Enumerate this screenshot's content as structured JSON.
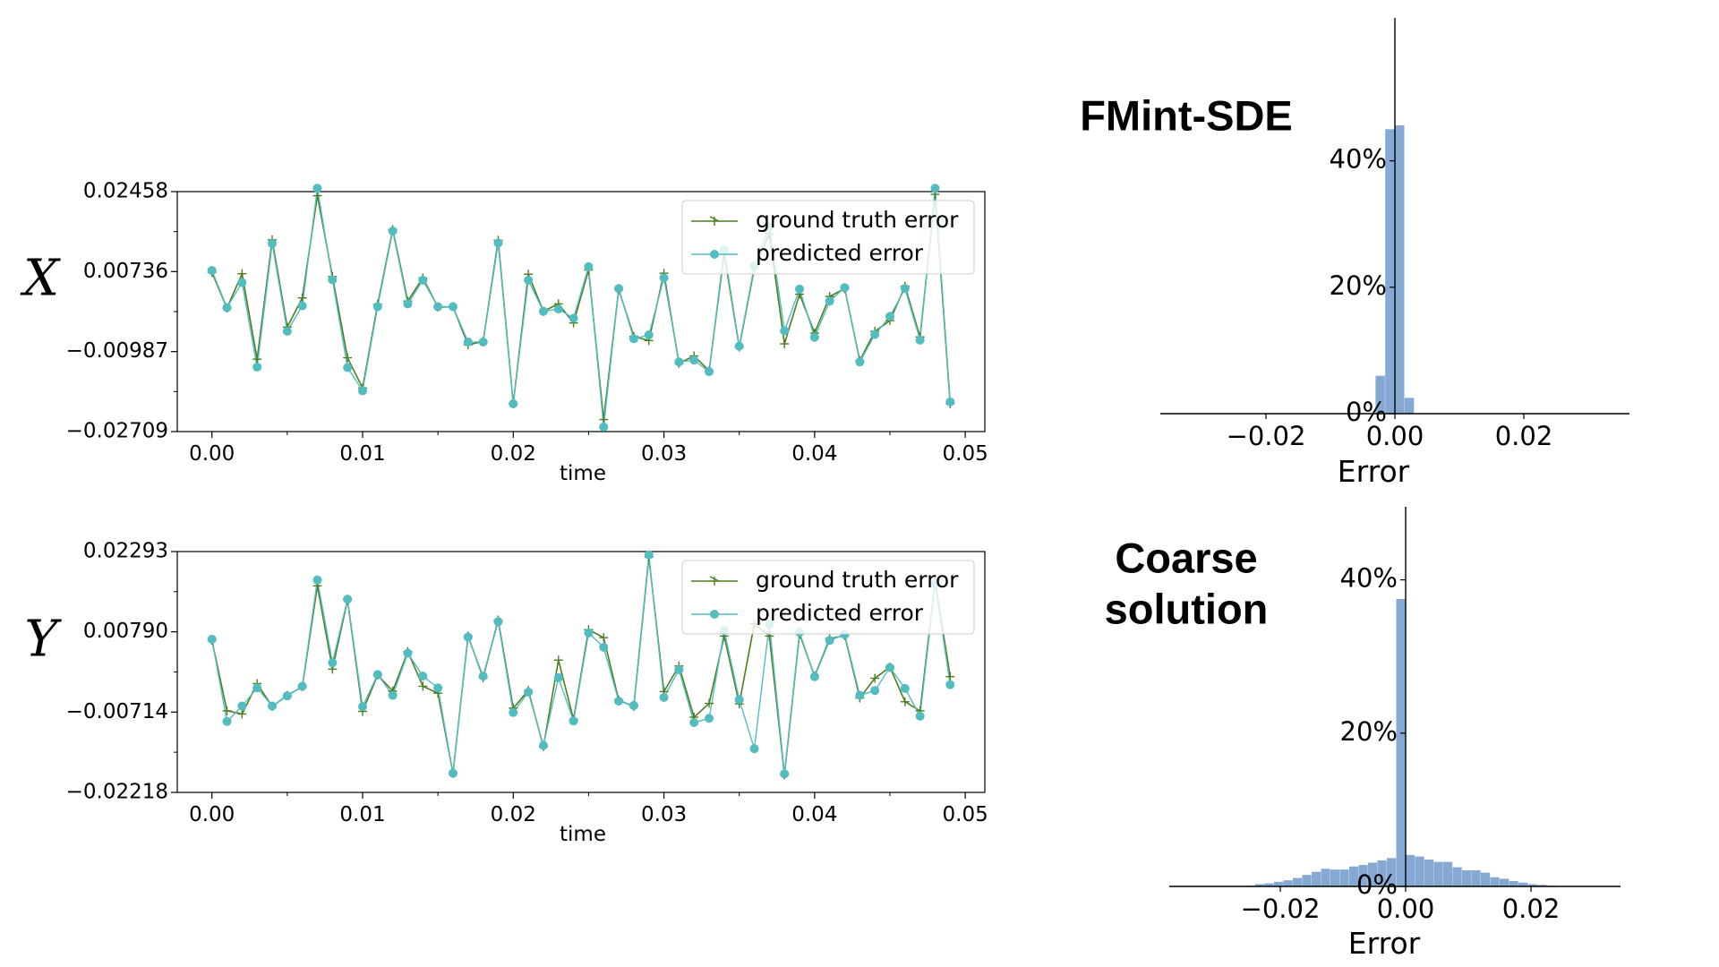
{
  "chart_data": [
    {
      "type": "line",
      "panel_label": "X",
      "xlabel": "time",
      "x": [
        0.0,
        0.001,
        0.002,
        0.003,
        0.004,
        0.005,
        0.006,
        0.007,
        0.008,
        0.009,
        0.01,
        0.011,
        0.012,
        0.013,
        0.014,
        0.015,
        0.016,
        0.017,
        0.018,
        0.019,
        0.02,
        0.021,
        0.022,
        0.023,
        0.024,
        0.025,
        0.026,
        0.027,
        0.028,
        0.029,
        0.03,
        0.031,
        0.032,
        0.033,
        0.034,
        0.035,
        0.036,
        0.037,
        0.038,
        0.039,
        0.04,
        0.041,
        0.042,
        0.043,
        0.044,
        0.045,
        0.046,
        0.047,
        0.048,
        0.049
      ],
      "xticks": [
        "0.00",
        "0.01",
        "0.02",
        "0.03",
        "0.04",
        "0.05"
      ],
      "xlim": [
        -0.0023,
        0.0513
      ],
      "yticks": [
        "0.02458",
        "0.00736",
        "−0.00987",
        "−0.02709"
      ],
      "ytick_values": [
        0.02458,
        0.00736,
        -0.00987,
        -0.02709
      ],
      "ylim": [
        -0.02709,
        0.02458
      ],
      "series": [
        {
          "name": "ground truth error",
          "color": "#4e7d1f",
          "marker": "plus",
          "values": [
            0.0072,
            -0.0005,
            0.0069,
            -0.0115,
            0.0142,
            -0.0046,
            0.0017,
            0.0237,
            0.0063,
            -0.0112,
            -0.0177,
            0.0003,
            0.0164,
            0.001,
            0.006,
            -0.0003,
            -0.0002,
            -0.0084,
            -0.0077,
            0.0141,
            -0.0211,
            0.0068,
            -0.0012,
            0.0004,
            -0.0037,
            0.0077,
            -0.0245,
            0.0035,
            -0.0066,
            -0.0075,
            0.007,
            -0.0124,
            -0.0108,
            -0.014,
            0.0112,
            -0.0089,
            0.0081,
            0.0155,
            -0.0082,
            0.0025,
            -0.0059,
            0.002,
            0.0037,
            -0.0118,
            -0.0055,
            -0.0032,
            0.0042,
            -0.0067,
            0.024,
            -0.0211
          ]
        },
        {
          "name": "predicted error",
          "color": "#52bcc0",
          "marker": "circle",
          "values": [
            0.0076,
            -0.0004,
            0.005,
            -0.0132,
            0.0134,
            -0.0055,
            0.0,
            0.0253,
            0.0056,
            -0.0133,
            -0.0183,
            -0.0002,
            0.0161,
            0.0004,
            0.0055,
            -0.0002,
            -0.0002,
            -0.0078,
            -0.0078,
            0.0135,
            -0.0211,
            0.0055,
            -0.0012,
            -0.0007,
            -0.0027,
            0.0084,
            -0.0261,
            0.0037,
            -0.0071,
            -0.0063,
            0.006,
            -0.0121,
            -0.0117,
            -0.0142,
            0.012,
            -0.0087,
            0.0086,
            0.017,
            -0.0054,
            0.0036,
            -0.0068,
            0.001,
            0.0039,
            -0.0121,
            -0.0062,
            -0.0023,
            0.0037,
            -0.0074,
            0.0253,
            -0.0207
          ]
        }
      ],
      "legend_position": "upper right"
    },
    {
      "type": "line",
      "panel_label": "Y",
      "xlabel": "time",
      "x": [
        0.0,
        0.001,
        0.002,
        0.003,
        0.004,
        0.005,
        0.006,
        0.007,
        0.008,
        0.009,
        0.01,
        0.011,
        0.012,
        0.013,
        0.014,
        0.015,
        0.016,
        0.017,
        0.018,
        0.019,
        0.02,
        0.021,
        0.022,
        0.023,
        0.024,
        0.025,
        0.026,
        0.027,
        0.028,
        0.029,
        0.03,
        0.031,
        0.032,
        0.033,
        0.034,
        0.035,
        0.036,
        0.037,
        0.038,
        0.039,
        0.04,
        0.041,
        0.042,
        0.043,
        0.044,
        0.045,
        0.046,
        0.047,
        0.048,
        0.049
      ],
      "xticks": [
        "0.00",
        "0.01",
        "0.02",
        "0.03",
        "0.04",
        "0.05"
      ],
      "xlim": [
        -0.0023,
        0.0513
      ],
      "yticks": [
        "0.02293",
        "0.00790",
        "−0.00714",
        "−0.02218"
      ],
      "ytick_values": [
        0.02293,
        0.0079,
        -0.00714,
        -0.02218
      ],
      "ylim": [
        -0.02218,
        0.02293
      ],
      "series": [
        {
          "name": "ground truth error",
          "color": "#4e7d1f",
          "marker": "plus",
          "values": [
            0.0063,
            -0.0069,
            -0.0075,
            -0.0018,
            -0.0061,
            -0.004,
            -0.0024,
            0.0165,
            0.0009,
            0.0139,
            -0.007,
            -0.0002,
            -0.0032,
            0.0042,
            -0.0023,
            -0.0036,
            -0.0186,
            0.0071,
            -0.0007,
            0.0101,
            -0.0064,
            -0.0031,
            -0.0136,
            0.0026,
            -0.0085,
            0.0083,
            0.0068,
            -0.0049,
            -0.0061,
            0.0219,
            -0.0033,
            0.0015,
            -0.0081,
            -0.0055,
            0.0071,
            -0.0056,
            0.0094,
            0.0071,
            -0.0189,
            0.0075,
            -0.0004,
            0.0066,
            0.0072,
            -0.0045,
            -0.0008,
            0.0013,
            -0.0052,
            -0.0069,
            0.0173,
            -0.0005
          ]
        },
        {
          "name": "predicted error",
          "color": "#52bcc0",
          "marker": "circle",
          "values": [
            0.0065,
            -0.0089,
            -0.006,
            -0.0026,
            -0.006,
            -0.0041,
            -0.0023,
            0.0176,
            0.0021,
            0.014,
            -0.0061,
            -0.0001,
            -0.004,
            0.0039,
            -0.0004,
            -0.0026,
            -0.0186,
            0.0069,
            -0.0004,
            0.0098,
            -0.0072,
            -0.0034,
            -0.0134,
            -0.0007,
            -0.0088,
            0.0077,
            0.005,
            -0.0051,
            -0.0059,
            0.0223,
            -0.0044,
            0.0008,
            -0.0091,
            -0.0083,
            0.0081,
            -0.0048,
            -0.014,
            0.0094,
            -0.0187,
            0.0078,
            -0.0005,
            0.0063,
            0.0074,
            -0.004,
            -0.0031,
            0.0012,
            -0.0027,
            -0.0079,
            0.017,
            -0.002
          ]
        }
      ],
      "legend_position": "upper right"
    },
    {
      "type": "bar",
      "subtype": "histogram",
      "title": "FMint-SDE",
      "xlabel": "Error",
      "xticks": [
        "−0.02",
        "0.00",
        "0.02"
      ],
      "xtick_values": [
        -0.02,
        0.0,
        0.02
      ],
      "xlim": [
        -0.0292,
        0.0292
      ],
      "yticks": [
        "0%",
        "20%",
        "40%"
      ],
      "ytick_values": [
        0,
        20,
        40
      ],
      "ylim": [
        0,
        50.5
      ],
      "bar_color": "#85a9d3",
      "bins": [
        {
          "x0": -0.003,
          "x1": -0.0015,
          "value": 6.0
        },
        {
          "x0": -0.0015,
          "x1": 0.0,
          "value": 45.0
        },
        {
          "x0": 0.0,
          "x1": 0.0015,
          "value": 45.6
        },
        {
          "x0": 0.0015,
          "x1": 0.003,
          "value": 2.5
        }
      ]
    },
    {
      "type": "bar",
      "subtype": "histogram",
      "title": "Coarse\nsolution",
      "xlabel": "Error",
      "xticks": [
        "−0.02",
        "0.00",
        "0.02"
      ],
      "xtick_values": [
        -0.02,
        0.0,
        0.02
      ],
      "xlim": [
        -0.0292,
        0.0292
      ],
      "yticks": [
        "0%",
        "20%",
        "40%"
      ],
      "ytick_values": [
        0,
        20,
        40
      ],
      "ylim": [
        0,
        49.5
      ],
      "bar_color": "#85a9d3",
      "bins": [
        {
          "x0": -0.0255,
          "x1": -0.024,
          "value": 0.1
        },
        {
          "x0": -0.024,
          "x1": -0.0225,
          "value": 0.3
        },
        {
          "x0": -0.0225,
          "x1": -0.021,
          "value": 0.4
        },
        {
          "x0": -0.021,
          "x1": -0.0195,
          "value": 0.6
        },
        {
          "x0": -0.0195,
          "x1": -0.018,
          "value": 0.8
        },
        {
          "x0": -0.018,
          "x1": -0.0165,
          "value": 1.1
        },
        {
          "x0": -0.0165,
          "x1": -0.015,
          "value": 1.5
        },
        {
          "x0": -0.015,
          "x1": -0.0135,
          "value": 1.9
        },
        {
          "x0": -0.0135,
          "x1": -0.012,
          "value": 2.3
        },
        {
          "x0": -0.012,
          "x1": -0.0105,
          "value": 2.2
        },
        {
          "x0": -0.0105,
          "x1": -0.009,
          "value": 2.2
        },
        {
          "x0": -0.009,
          "x1": -0.0075,
          "value": 2.6
        },
        {
          "x0": -0.0075,
          "x1": -0.006,
          "value": 2.8
        },
        {
          "x0": -0.006,
          "x1": -0.0045,
          "value": 3.1
        },
        {
          "x0": -0.0045,
          "x1": -0.003,
          "value": 3.4
        },
        {
          "x0": -0.003,
          "x1": -0.0015,
          "value": 3.7
        },
        {
          "x0": -0.0015,
          "x1": 0.0,
          "value": 37.5
        },
        {
          "x0": 0.0,
          "x1": 0.0015,
          "value": 4.1
        },
        {
          "x0": 0.0015,
          "x1": 0.003,
          "value": 3.9
        },
        {
          "x0": 0.003,
          "x1": 0.0045,
          "value": 3.5
        },
        {
          "x0": 0.0045,
          "x1": 0.006,
          "value": 3.2
        },
        {
          "x0": 0.006,
          "x1": 0.0075,
          "value": 3.2
        },
        {
          "x0": 0.0075,
          "x1": 0.009,
          "value": 2.5
        },
        {
          "x0": 0.009,
          "x1": 0.0105,
          "value": 2.1
        },
        {
          "x0": 0.0105,
          "x1": 0.012,
          "value": 2.1
        },
        {
          "x0": 0.012,
          "x1": 0.0135,
          "value": 1.8
        },
        {
          "x0": 0.0135,
          "x1": 0.015,
          "value": 1.2
        },
        {
          "x0": 0.015,
          "x1": 0.0165,
          "value": 1.0
        },
        {
          "x0": 0.0165,
          "x1": 0.018,
          "value": 0.7
        },
        {
          "x0": 0.018,
          "x1": 0.0195,
          "value": 0.5
        },
        {
          "x0": 0.0195,
          "x1": 0.021,
          "value": 0.3
        },
        {
          "x0": 0.021,
          "x1": 0.0225,
          "value": 0.2
        },
        {
          "x0": 0.0225,
          "x1": 0.024,
          "value": 0.1
        }
      ]
    }
  ]
}
